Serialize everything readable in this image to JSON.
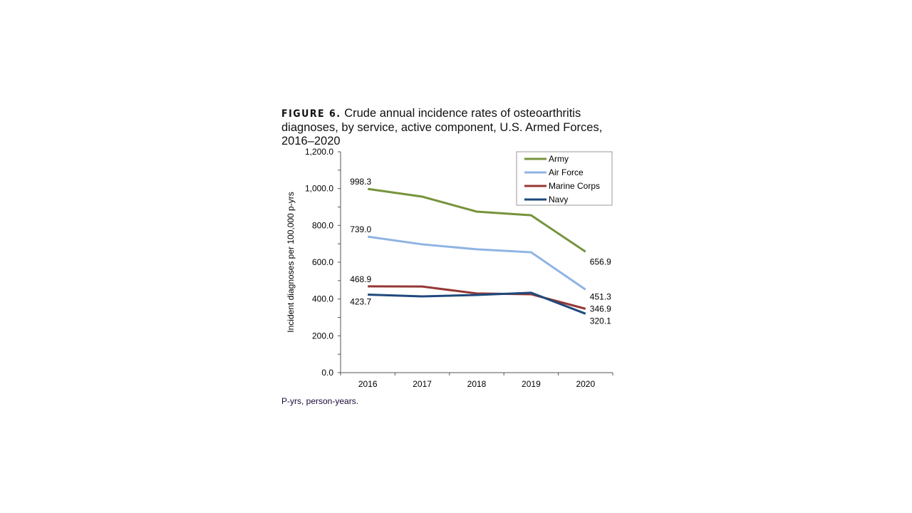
{
  "title": {
    "label": "FIGURE 6.",
    "text": "Crude annual incidence rates of osteoarthritis diagnoses, by service, active component, U.S. Armed Forces, 2016–2020"
  },
  "footnote": "P-yrs, person-years.",
  "chart_data": {
    "type": "line",
    "title": "",
    "xlabel": "",
    "ylabel": "Incident diagnoses per 100,000 p-yrs",
    "ylim": [
      0,
      1200
    ],
    "yticks": [
      "0.0",
      "200.0",
      "400.0",
      "600.0",
      "800.0",
      "1,000.0",
      "1,200.0"
    ],
    "x": [
      "2016",
      "2017",
      "2018",
      "2019",
      "2020"
    ],
    "grid": false,
    "legend_position": "top-right",
    "series": [
      {
        "name": "Army",
        "color": "#77933c",
        "values": [
          998.3,
          956,
          875,
          855,
          656.9
        ],
        "labels": {
          "0": "998.3",
          "4": "656.9"
        }
      },
      {
        "name": "Air Force",
        "color": "#8eb4e3",
        "values": [
          739.0,
          697,
          670,
          654,
          451.3
        ],
        "labels": {
          "0": "739.0",
          "4": "451.3"
        }
      },
      {
        "name": "Marine Corps",
        "color": "#953735",
        "values": [
          468.9,
          468,
          430,
          426,
          346.9
        ],
        "labels": {
          "0": "468.9",
          "4": "346.9"
        }
      },
      {
        "name": "Navy",
        "color": "#1f497d",
        "values": [
          423.7,
          414,
          422,
          434,
          320.1
        ],
        "labels": {
          "0": "423.7",
          "4": "320.1"
        }
      }
    ]
  }
}
